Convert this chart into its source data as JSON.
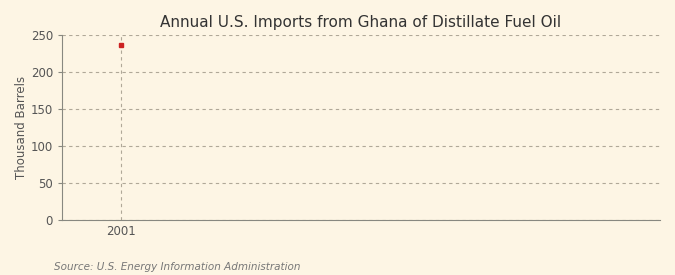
{
  "title": "Annual U.S. Imports from Ghana of Distillate Fuel Oil",
  "ylabel": "Thousand Barrels",
  "source": "Source: U.S. Energy Information Administration",
  "x_values": [
    2001
  ],
  "y_values": [
    237
  ],
  "point_color": "#cc2222",
  "background_color": "#fdf5e4",
  "grid_color": "#b0a898",
  "spine_color": "#888880",
  "ylim": [
    0,
    250
  ],
  "yticks": [
    0,
    50,
    100,
    150,
    200,
    250
  ],
  "xlim": [
    1999.8,
    2012
  ],
  "xticks": [
    2001
  ],
  "title_fontsize": 11,
  "label_fontsize": 8.5,
  "tick_fontsize": 8.5,
  "source_fontsize": 7.5
}
